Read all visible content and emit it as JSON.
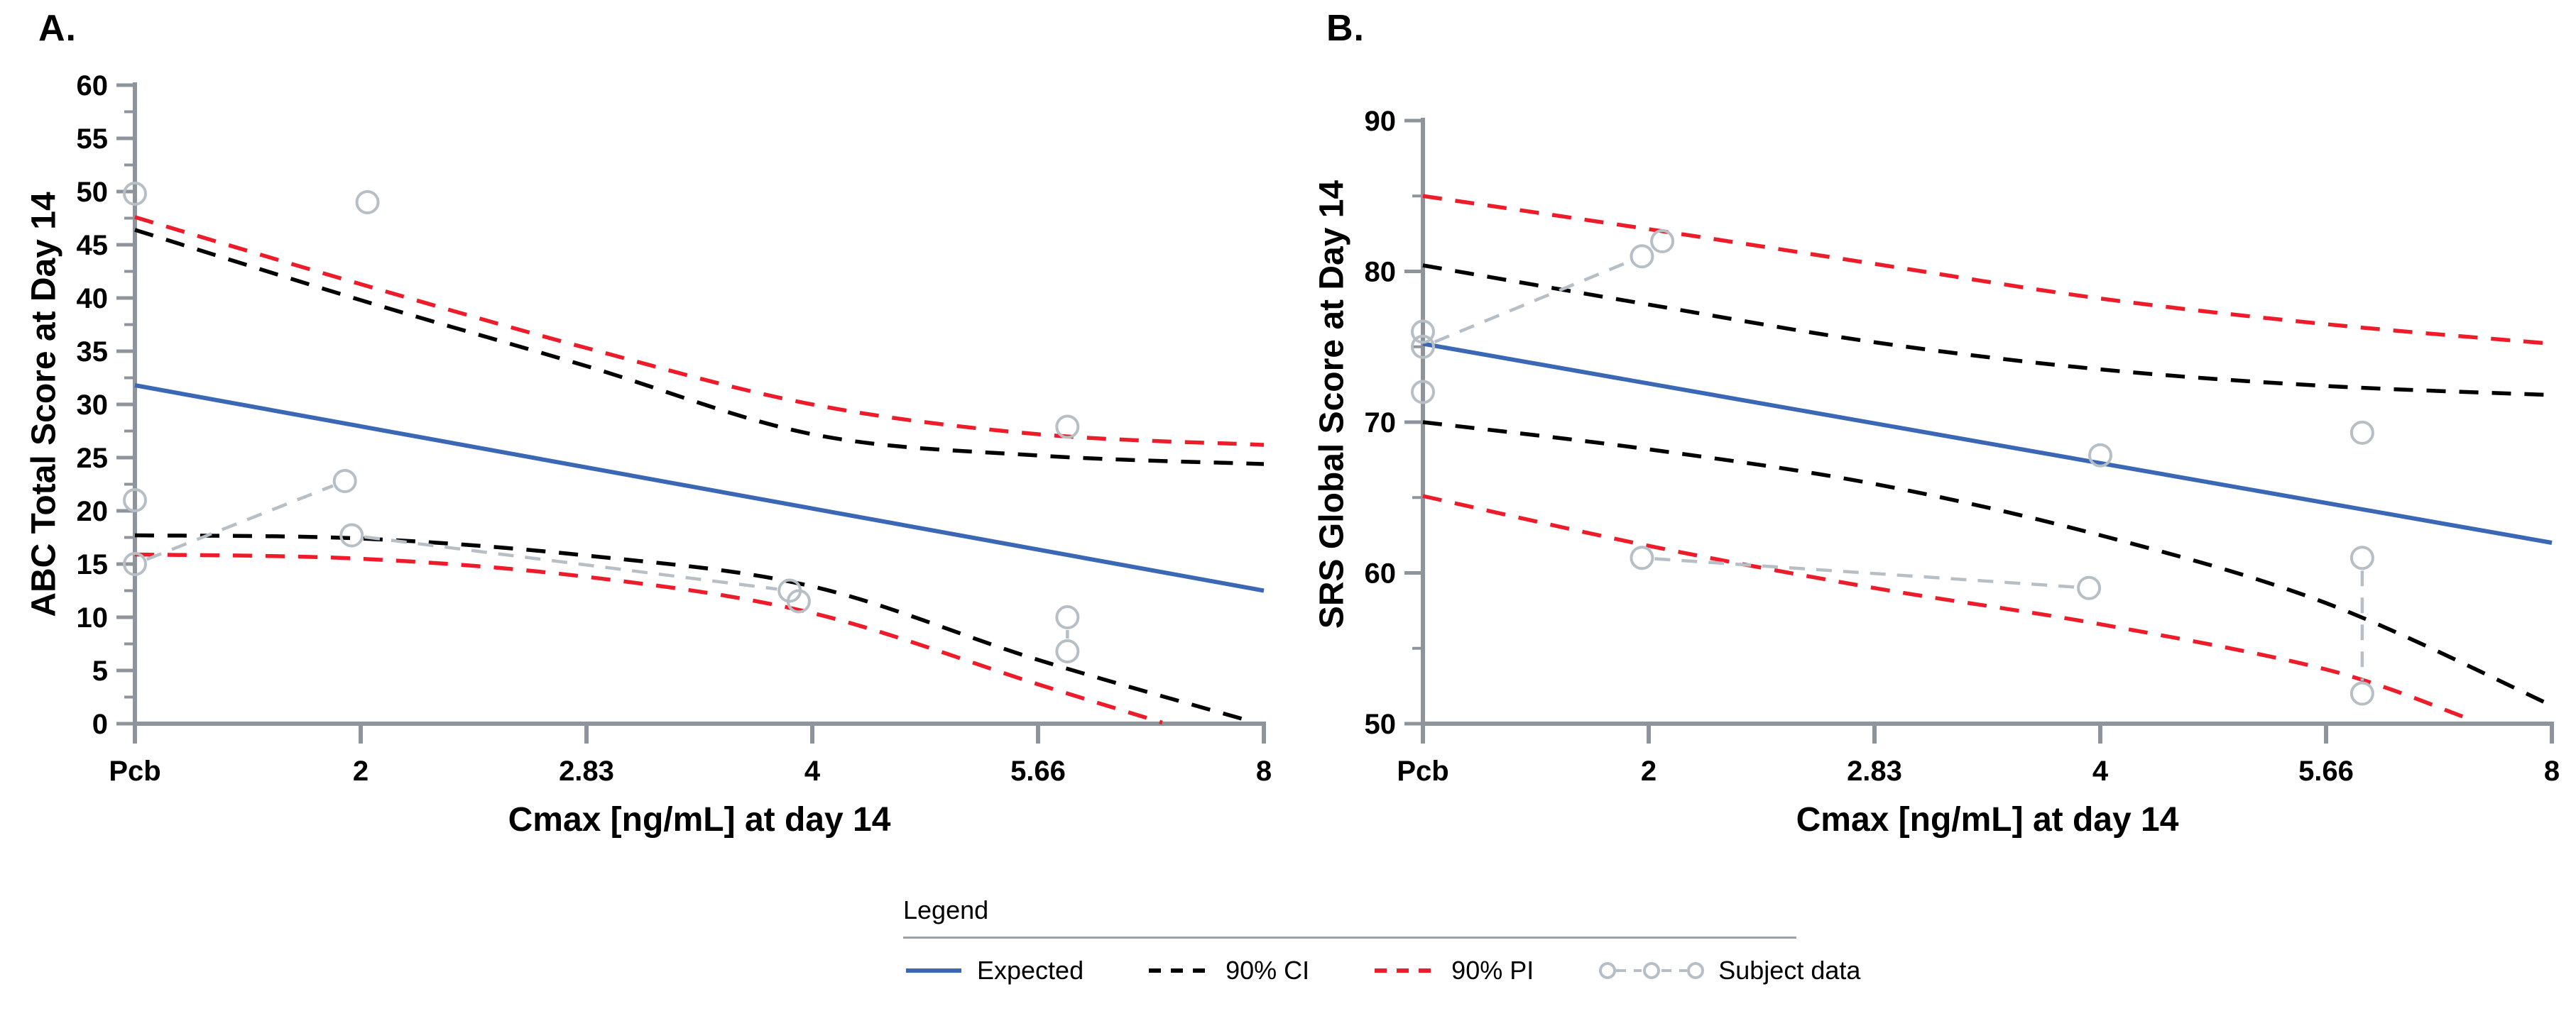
{
  "figure": {
    "panels": [
      {
        "letter": "A.",
        "y_title": "ABC Total Score at Day 14",
        "x_title": "Cmax [ng/mL] at day 14"
      },
      {
        "letter": "B.",
        "y_title": "SRS Global Score at Day 14",
        "x_title": "Cmax [ng/mL] at day 14"
      }
    ],
    "legend": {
      "title": "Legend",
      "items": [
        "Expected",
        "90% CI",
        "90% PI",
        "Subject data"
      ]
    }
  },
  "colors": {
    "expected": "#3a68b4",
    "ci": "#000000",
    "pi": "#ee1c2b",
    "subject": "#b7bfc6",
    "axis": "#8d949b",
    "text": "#000000"
  },
  "chart_data": [
    {
      "type": "line",
      "panel": "A.",
      "xlabel": "Cmax [ng/mL] at day 14",
      "ylabel": "ABC Total Score at Day 14",
      "x_tick_labels": [
        "Pcb",
        "2",
        "2.83",
        "4",
        "5.66",
        "8"
      ],
      "x_note": "log2-spaced concentration axis; Pcb = placebo at origin; x values below are in tick-index units (0=Pcb ... 5=8 ng/mL)",
      "ylim": [
        0,
        60
      ],
      "y_label_step": 5,
      "y_minor_step": 2.5,
      "grid": false,
      "series": [
        {
          "name": "Expected",
          "style": "solid",
          "color_key": "expected",
          "points": [
            [
              0,
              31.8
            ],
            [
              5,
              12.5
            ]
          ]
        },
        {
          "name": "90% CI upper",
          "style": "dashed",
          "color_key": "ci",
          "points": [
            [
              0,
              46.4
            ],
            [
              1,
              39.8
            ],
            [
              2,
              33.6
            ],
            [
              3,
              27.2
            ],
            [
              4,
              25.2
            ],
            [
              5,
              24.4
            ]
          ]
        },
        {
          "name": "90% CI lower",
          "style": "dashed",
          "color_key": "ci",
          "points": [
            [
              0,
              17.7
            ],
            [
              1,
              17.4
            ],
            [
              2,
              15.8
            ],
            [
              3,
              12.9
            ],
            [
              4,
              6.0
            ],
            [
              4.93,
              0.3
            ]
          ]
        },
        {
          "name": "90% PI upper",
          "style": "dashed",
          "color_key": "pi",
          "points": [
            [
              0,
              47.6
            ],
            [
              1,
              41.3
            ],
            [
              2,
              35.3
            ],
            [
              3,
              30.0
            ],
            [
              4,
              27.2
            ],
            [
              5,
              26.2
            ]
          ]
        },
        {
          "name": "90% PI lower",
          "style": "dashed",
          "color_key": "pi",
          "points": [
            [
              0,
              15.9
            ],
            [
              1,
              15.5
            ],
            [
              2,
              13.8
            ],
            [
              3,
              10.4
            ],
            [
              4,
              3.7
            ],
            [
              4.55,
              0.1
            ]
          ]
        }
      ],
      "subjects": [
        {
          "points": [
            [
              0,
              49.8
            ]
          ]
        },
        {
          "points": [
            [
              1.03,
              49
            ]
          ]
        },
        {
          "points": [
            [
              0,
              21
            ]
          ]
        },
        {
          "points": [
            [
              0,
              15
            ],
            [
              0.93,
              22.8
            ]
          ]
        },
        {
          "points": [
            [
              0.96,
              17.7
            ],
            [
              2.9,
              12.5
            ]
          ]
        },
        {
          "points": [
            [
              2.94,
              11.5
            ]
          ]
        },
        {
          "points": [
            [
              4.13,
              10
            ],
            [
              4.13,
              6.8
            ]
          ]
        },
        {
          "points": [
            [
              4.13,
              27.9
            ]
          ]
        }
      ]
    },
    {
      "type": "line",
      "panel": "B.",
      "xlabel": "Cmax [ng/mL] at day 14",
      "ylabel": "SRS Global Score at Day 14",
      "x_tick_labels": [
        "Pcb",
        "2",
        "2.83",
        "4",
        "5.66",
        "8"
      ],
      "x_note": "log2-spaced concentration axis; Pcb = placebo at origin; x values below are in tick-index units (0=Pcb ... 5=8 ng/mL)",
      "ylim": [
        50,
        90
      ],
      "y_label_step": 10,
      "y_minor_step": 5,
      "grid": false,
      "series": [
        {
          "name": "Expected",
          "style": "solid",
          "color_key": "expected",
          "points": [
            [
              0,
              75.2
            ],
            [
              5,
              62.0
            ]
          ]
        },
        {
          "name": "90% CI upper",
          "style": "dashed",
          "color_key": "ci",
          "points": [
            [
              0,
              80.4
            ],
            [
              1,
              77.8
            ],
            [
              2,
              75.3
            ],
            [
              3,
              73.5
            ],
            [
              4,
              72.4
            ],
            [
              5,
              71.8
            ]
          ]
        },
        {
          "name": "90% CI lower",
          "style": "dashed",
          "color_key": "ci",
          "points": [
            [
              0,
              70.0
            ],
            [
              1,
              68.2
            ],
            [
              2,
              65.9
            ],
            [
              3,
              62.5
            ],
            [
              4,
              58.0
            ],
            [
              5,
              51.2
            ]
          ]
        },
        {
          "name": "90% PI upper",
          "style": "dashed",
          "color_key": "pi",
          "points": [
            [
              0,
              85.0
            ],
            [
              1,
              82.8
            ],
            [
              2,
              80.5
            ],
            [
              3,
              78.2
            ],
            [
              4,
              76.5
            ],
            [
              5,
              75.2
            ]
          ]
        },
        {
          "name": "90% PI lower",
          "style": "dashed",
          "color_key": "pi",
          "points": [
            [
              0,
              65.1
            ],
            [
              1,
              61.8
            ],
            [
              2,
              59.0
            ],
            [
              3,
              56.6
            ],
            [
              4,
              53.6
            ],
            [
              4.62,
              50.4
            ]
          ]
        }
      ],
      "subjects": [
        {
          "points": [
            [
              0,
              76
            ]
          ]
        },
        {
          "points": [
            [
              0,
              72
            ]
          ]
        },
        {
          "points": [
            [
              0,
              75
            ],
            [
              0.97,
              81
            ]
          ]
        },
        {
          "points": [
            [
              1.06,
              82
            ]
          ]
        },
        {
          "points": [
            [
              0.97,
              61
            ],
            [
              2.95,
              59
            ]
          ]
        },
        {
          "points": [
            [
              3.0,
              67.8
            ]
          ]
        },
        {
          "points": [
            [
              4.16,
              69.3
            ]
          ]
        },
        {
          "points": [
            [
              4.16,
              61
            ],
            [
              4.16,
              52
            ]
          ]
        }
      ]
    }
  ]
}
